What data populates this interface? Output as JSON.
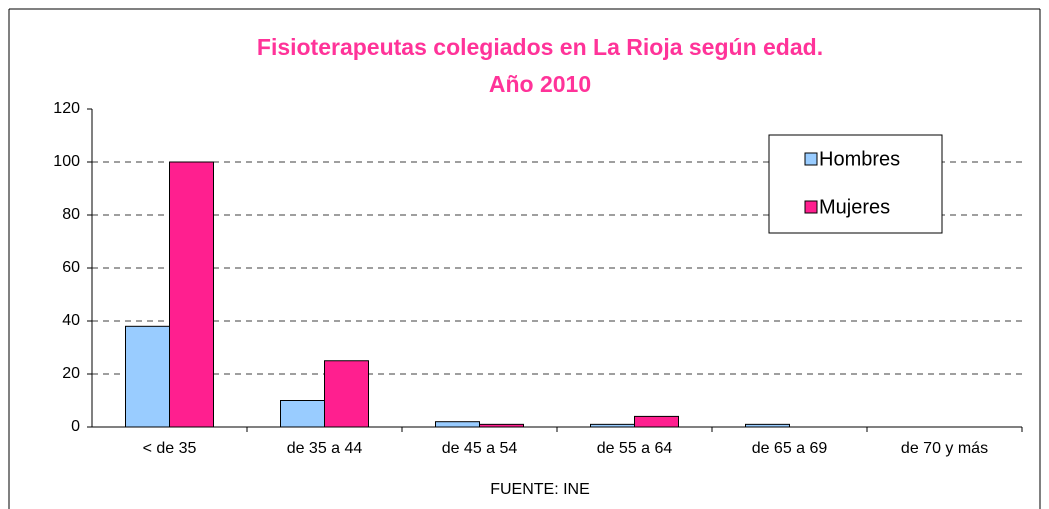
{
  "chart_data": {
    "type": "bar",
    "title": "Fisioterapeutas colegiados en La Rioja según edad.",
    "subtitle": "Año 2010",
    "x_label": "FUENTE: INE",
    "categories": [
      "< de 35",
      "de 35 a 44",
      "de 45 a 54",
      "de 55 a 64",
      "de 65 a 69",
      "de 70 y más"
    ],
    "series": [
      {
        "name": "Hombres",
        "color": "#99ccff",
        "values": [
          38,
          10,
          2,
          1,
          1,
          0
        ]
      },
      {
        "name": "Mujeres",
        "color": "#ff1f8f",
        "values": [
          100,
          25,
          1,
          4,
          0,
          0
        ]
      }
    ],
    "ylim": [
      0,
      120
    ],
    "yticks": [
      0,
      20,
      40,
      60,
      80,
      100,
      120
    ],
    "grid": true,
    "legend": "upper right"
  }
}
